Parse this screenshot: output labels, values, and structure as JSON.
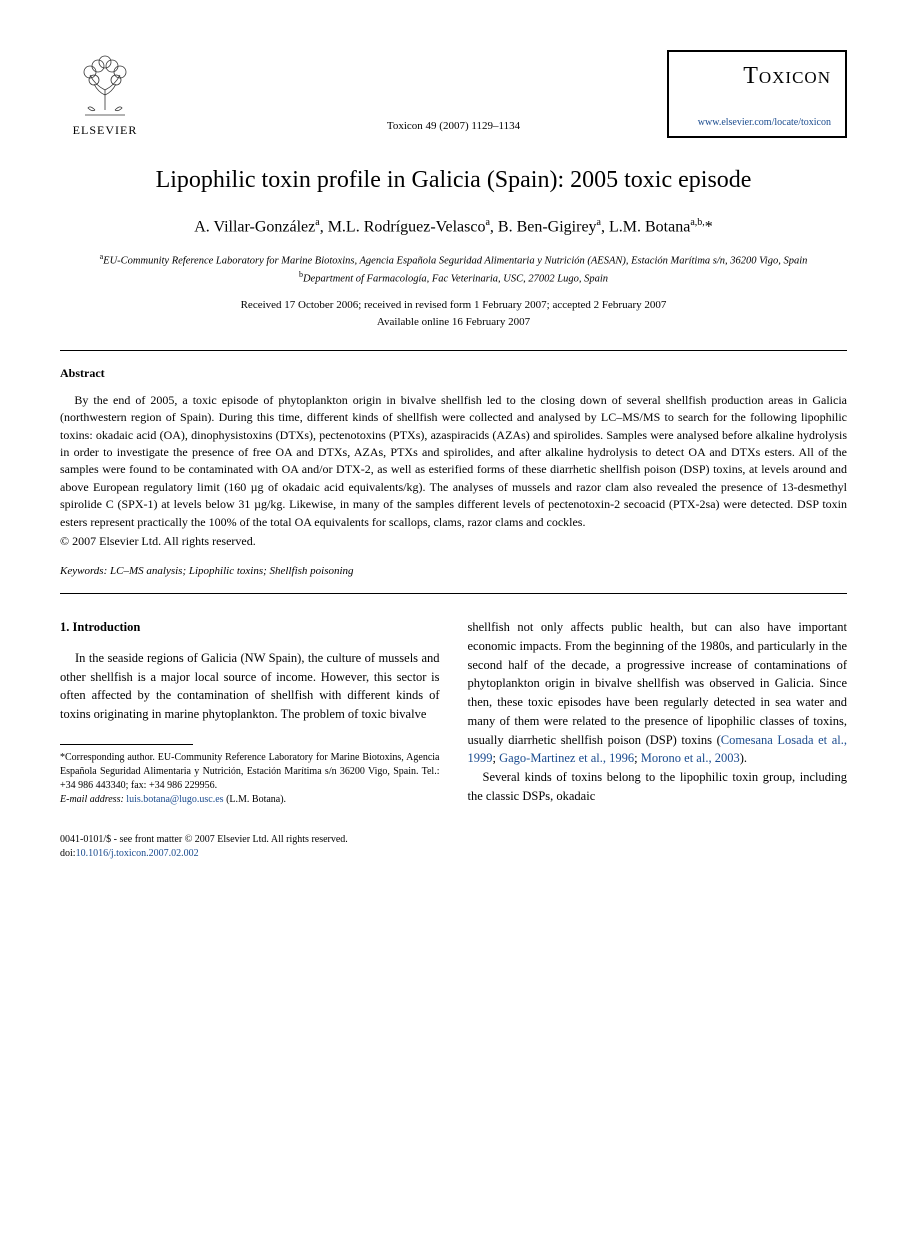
{
  "header": {
    "publisher": "ELSEVIER",
    "citation": "Toxicon 49 (2007) 1129–1134",
    "journal_name": "Toxicon",
    "journal_url": "www.elsevier.com/locate/toxicon"
  },
  "title": "Lipophilic toxin profile in Galicia (Spain): 2005 toxic episode",
  "authors_html": "A. Villar-González<sup>a</sup>, M.L. Rodríguez-Velasco<sup>a</sup>, B. Ben-Gigirey<sup>a</sup>, L.M. Botana<sup>a,b,</sup>*",
  "affiliations": {
    "a": "EU-Community Reference Laboratory for Marine Biotoxins, Agencia Española Seguridad Alimentaria y Nutrición (AESAN), Estación Marítima s/n, 36200 Vigo, Spain",
    "b": "Department of Farmacología, Fac Veterinaria, USC, 27002 Lugo, Spain"
  },
  "dates": {
    "received": "Received 17 October 2006; received in revised form 1 February 2007; accepted 2 February 2007",
    "online": "Available online 16 February 2007"
  },
  "abstract": {
    "heading": "Abstract",
    "text": "By the end of 2005, a toxic episode of phytoplankton origin in bivalve shellfish led to the closing down of several shellfish production areas in Galicia (northwestern region of Spain). During this time, different kinds of shellfish were collected and analysed by LC–MS/MS to search for the following lipophilic toxins: okadaic acid (OA), dinophysistoxins (DTXs), pectenotoxins (PTXs), azaspiracids (AZAs) and spirolides. Samples were analysed before alkaline hydrolysis in order to investigate the presence of free OA and DTXs, AZAs, PTXs and spirolides, and after alkaline hydrolysis to detect OA and DTXs esters. All of the samples were found to be contaminated with OA and/or DTX-2, as well as esterified forms of these diarrhetic shellfish poison (DSP) toxins, at levels around and above European regulatory limit (160 µg of okadaic acid equivalents/kg). The analyses of mussels and razor clam also revealed the presence of 13-desmethyl spirolide C (SPX-1) at levels below 31 µg/kg. Likewise, in many of the samples different levels of pectenotoxin-2 secoacid (PTX-2sa) were detected. DSP toxin esters represent practically the 100% of the total OA equivalents for scallops, clams, razor clams and cockles.",
    "copyright": "© 2007 Elsevier Ltd. All rights reserved."
  },
  "keywords": {
    "label": "Keywords:",
    "text": "LC–MS analysis; Lipophilic toxins; Shellfish poisoning"
  },
  "section1": {
    "heading": "1.  Introduction",
    "para_left": "In the seaside regions of Galicia (NW Spain), the culture of mussels and other shellfish is a major local source of income. However, this sector is often affected by the contamination of shellfish with different kinds of toxins originating in marine phytoplankton. The problem of toxic bivalve",
    "para_right_1a": "shellfish not only affects public health, but can also have important economic impacts. From the beginning of the 1980s, and particularly in the second half of the decade, a progressive increase of contaminations of phytoplankton origin in bivalve shellfish was observed in Galicia. Since then, these toxic episodes have been regularly detected in sea water and many of them were related to the presence of lipophilic classes of toxins, usually diarrhetic shellfish poison (DSP) toxins (",
    "ref1": "Comesana Losada et al., 1999",
    "ref_sep1": "; ",
    "ref2": "Gago-Martinez et al., 1996",
    "ref_sep2": "; ",
    "ref3": "Morono et al., 2003",
    "ref_close": ").",
    "para_right_2": "Several kinds of toxins belong to the lipophilic toxin group, including the classic DSPs, okadaic"
  },
  "footnote": {
    "corr": "*Corresponding author. EU-Community Reference Laboratory for Marine Biotoxins, Agencia Española Seguridad Alimentaria y Nutrición, Estación Marítima s/n 36200 Vigo, Spain. Tel.: +34 986 443340; fax: +34 986 229956.",
    "email_label": "E-mail address:",
    "email": "luis.botana@lugo.usc.es",
    "email_name": "(L.M. Botana)."
  },
  "bottom": {
    "issn": "0041-0101/$ - see front matter © 2007 Elsevier Ltd. All rights reserved.",
    "doi_label": "doi:",
    "doi": "10.1016/j.toxicon.2007.02.002"
  },
  "colors": {
    "link": "#1a4b8e",
    "text": "#000000",
    "background": "#ffffff"
  }
}
